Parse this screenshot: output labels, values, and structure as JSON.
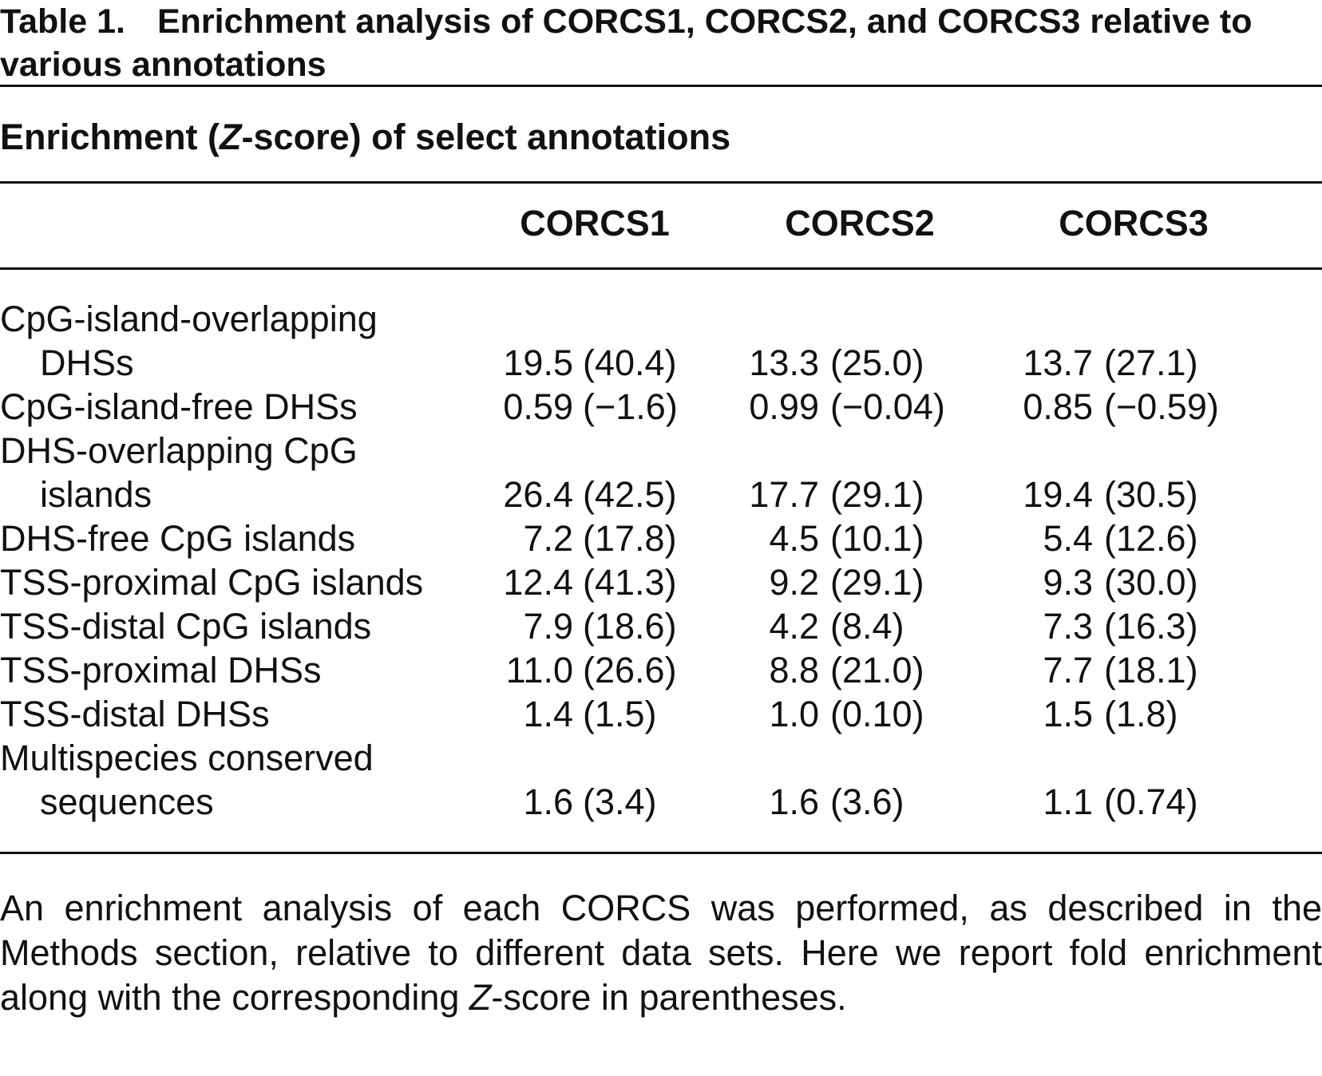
{
  "title": {
    "label": "Table 1.",
    "text": "Enrichment analysis of CORCS1, CORCS2, and CORCS3 relative to various annotations"
  },
  "subtitle": [
    "Enrichment (",
    "Z",
    "-score) of select annotations"
  ],
  "table": {
    "columns": [
      "CORCS1",
      "CORCS2",
      "CORCS3"
    ],
    "rows": [
      {
        "label_lines": [
          "CpG-island-overlapping",
          "DHSs"
        ],
        "cells": [
          {
            "fold": "19.5",
            "z": "(40.4)"
          },
          {
            "fold": "13.3",
            "z": "(25.0)"
          },
          {
            "fold": "13.7",
            "z": "(27.1)"
          }
        ]
      },
      {
        "label_lines": [
          "CpG-island-free DHSs"
        ],
        "cells": [
          {
            "fold": "0.59",
            "z": "(−1.6)"
          },
          {
            "fold": "0.99",
            "z": "(−0.04)"
          },
          {
            "fold": "0.85",
            "z": "(−0.59)"
          }
        ]
      },
      {
        "label_lines": [
          "DHS-overlapping CpG",
          "islands"
        ],
        "cells": [
          {
            "fold": "26.4",
            "z": "(42.5)"
          },
          {
            "fold": "17.7",
            "z": "(29.1)"
          },
          {
            "fold": "19.4",
            "z": "(30.5)"
          }
        ]
      },
      {
        "label_lines": [
          "DHS-free CpG islands"
        ],
        "cells": [
          {
            "fold": "7.2",
            "z": "(17.8)"
          },
          {
            "fold": "4.5",
            "z": "(10.1)"
          },
          {
            "fold": "5.4",
            "z": "(12.6)"
          }
        ]
      },
      {
        "label_lines": [
          "TSS-proximal CpG islands"
        ],
        "cells": [
          {
            "fold": "12.4",
            "z": "(41.3)"
          },
          {
            "fold": "9.2",
            "z": "(29.1)"
          },
          {
            "fold": "9.3",
            "z": "(30.0)"
          }
        ]
      },
      {
        "label_lines": [
          "TSS-distal CpG islands"
        ],
        "cells": [
          {
            "fold": "7.9",
            "z": "(18.6)"
          },
          {
            "fold": "4.2",
            "z": "(8.4)"
          },
          {
            "fold": "7.3",
            "z": "(16.3)"
          }
        ]
      },
      {
        "label_lines": [
          "TSS-proximal DHSs"
        ],
        "cells": [
          {
            "fold": "11.0",
            "z": "(26.6)"
          },
          {
            "fold": "8.8",
            "z": "(21.0)"
          },
          {
            "fold": "7.7",
            "z": "(18.1)"
          }
        ]
      },
      {
        "label_lines": [
          "TSS-distal DHSs"
        ],
        "cells": [
          {
            "fold": "1.4",
            "z": "(1.5)"
          },
          {
            "fold": "1.0",
            "z": "(0.10)"
          },
          {
            "fold": "1.5",
            "z": "(1.8)"
          }
        ]
      },
      {
        "label_lines": [
          "Multispecies conserved",
          "sequences"
        ],
        "cells": [
          {
            "fold": "1.6",
            "z": "(3.4)"
          },
          {
            "fold": "1.6",
            "z": "(3.6)"
          },
          {
            "fold": "1.1",
            "z": "(0.74)"
          }
        ]
      }
    ]
  },
  "footnote": [
    "An enrichment analysis of each CORCS was performed, as described in the Methods section, relative to different data sets. Here we report fold enrichment along with the corresponding ",
    "Z",
    "-score in parentheses."
  ]
}
